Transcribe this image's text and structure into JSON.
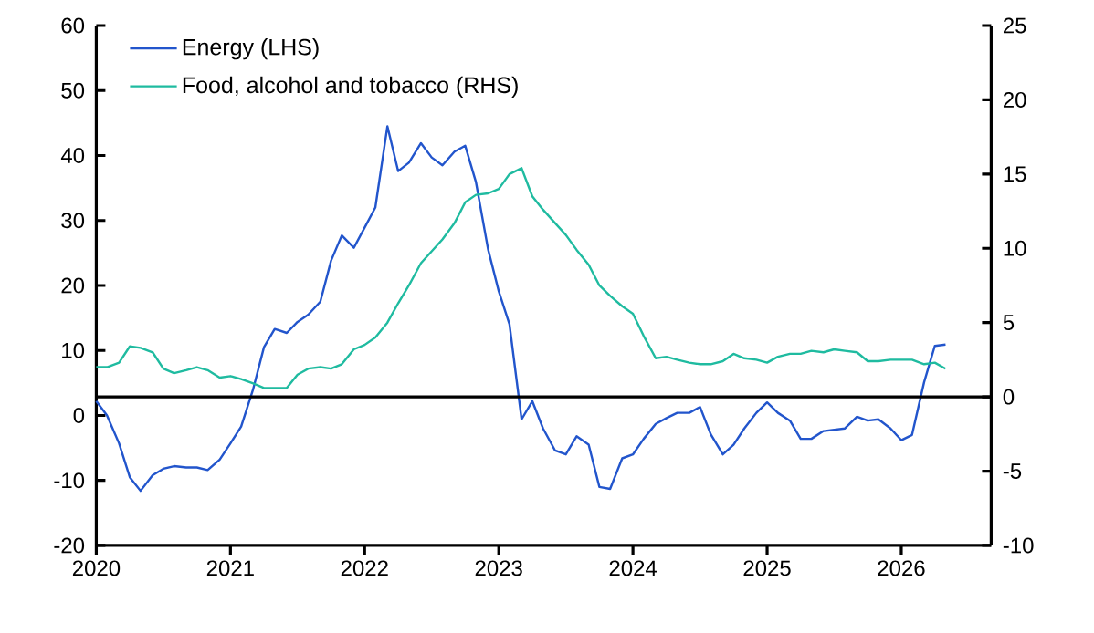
{
  "chart_data": {
    "type": "line",
    "x": [
      "2020-01",
      "2020-02",
      "2020-03",
      "2020-04",
      "2020-05",
      "2020-06",
      "2020-07",
      "2020-08",
      "2020-09",
      "2020-10",
      "2020-11",
      "2020-12",
      "2021-01",
      "2021-02",
      "2021-03",
      "2021-04",
      "2021-05",
      "2021-06",
      "2021-07",
      "2021-08",
      "2021-09",
      "2021-10",
      "2021-11",
      "2021-12",
      "2022-01",
      "2022-02",
      "2022-03",
      "2022-04",
      "2022-05",
      "2022-06",
      "2022-07",
      "2022-08",
      "2022-09",
      "2022-10",
      "2022-11",
      "2022-12",
      "2023-01",
      "2023-02",
      "2023-03",
      "2023-04",
      "2023-05",
      "2023-06",
      "2023-07",
      "2023-08",
      "2023-09",
      "2023-10",
      "2023-11",
      "2023-12",
      "2024-01",
      "2024-02",
      "2024-03",
      "2024-04",
      "2024-05",
      "2024-06",
      "2024-07",
      "2024-08",
      "2024-09",
      "2024-10",
      "2024-11",
      "2024-12",
      "2025-01",
      "2025-02",
      "2025-03",
      "2025-04",
      "2025-05",
      "2025-06",
      "2025-07",
      "2025-08",
      "2025-09",
      "2025-10",
      "2025-11",
      "2025-12",
      "2026-01",
      "2026-02",
      "2026-03",
      "2026-04",
      "2026-05"
    ],
    "series": [
      {
        "name": "Energy (LHS)",
        "color": "#2255cc",
        "values": [
          2.2,
          0,
          -4.3,
          -9.5,
          -11.6,
          -9.2,
          -8.2,
          -7.8,
          -8.0,
          -8.0,
          -8.4,
          -6.8,
          -4.3,
          -1.7,
          4.1,
          10.5,
          13.3,
          12.7,
          14.4,
          15.5,
          17.5,
          23.8,
          27.7,
          25.8,
          28.9,
          32.0,
          44.5,
          37.6,
          38.9,
          41.9,
          39.7,
          38.5,
          40.6,
          41.5,
          35.9,
          25.6,
          19.1,
          14.0,
          -0.6,
          2.2,
          -2.0,
          -5.4,
          -6.0,
          -3.2,
          -4.5,
          -11.0,
          -11.3,
          -6.6,
          -6.0,
          -3.6,
          -1.3,
          -0.4,
          0.4,
          0.4,
          1.3,
          -2.9,
          -6.0,
          -4.5,
          -2.0,
          0.4,
          2.0,
          0.4,
          -0.8,
          -3.6,
          -3.6,
          -2.4,
          -2.2,
          -2.0,
          -0.2,
          -0.8,
          -0.6,
          -2.0,
          -3.8,
          -3.0,
          5.1,
          10.7,
          10.9
        ]
      },
      {
        "name": "Food, alcohol and tobacco (RHS)",
        "color": "#1fbba0",
        "axis": "y2",
        "values": [
          2.0,
          2.0,
          2.3,
          3.4,
          3.3,
          3.0,
          1.9,
          1.6,
          1.8,
          2.0,
          1.8,
          1.3,
          1.4,
          1.2,
          0.9,
          0.6,
          0.6,
          0.6,
          1.5,
          1.9,
          2.0,
          1.9,
          2.2,
          3.2,
          3.5,
          4.0,
          5.0,
          6.3,
          7.5,
          9.0,
          9.8,
          10.6,
          11.7,
          13.1,
          13.6,
          13.7,
          14.0,
          15.0,
          15.4,
          13.5,
          12.6,
          11.7,
          10.9,
          9.9,
          8.9,
          7.5,
          6.8,
          6.1,
          5.6,
          4.1,
          2.6,
          2.7,
          2.5,
          2.3,
          2.2,
          2.2,
          2.4,
          2.9,
          2.6,
          2.5,
          2.3,
          2.7,
          2.9,
          2.9,
          3.1,
          3.0,
          3.2,
          3.1,
          3.0,
          2.4,
          2.4,
          2.5,
          2.5,
          2.5,
          2.2,
          2.3,
          1.9
        ]
      }
    ],
    "xlim": [
      "2020-01",
      "2026-09"
    ],
    "xticks": [
      "2020",
      "2021",
      "2022",
      "2023",
      "2024",
      "2025",
      "2026"
    ],
    "ylim": [
      -20,
      60
    ],
    "yticks": [
      -20,
      -10,
      0,
      10,
      20,
      30,
      40,
      50,
      60
    ],
    "y2lim": [
      -10,
      25
    ],
    "y2ticks": [
      -10,
      -5,
      0,
      5,
      10,
      15,
      20,
      25
    ],
    "ref_lines": [
      {
        "axis": "y2",
        "value": 0,
        "color": "#000000"
      }
    ],
    "legend": "top left",
    "grid": false
  }
}
